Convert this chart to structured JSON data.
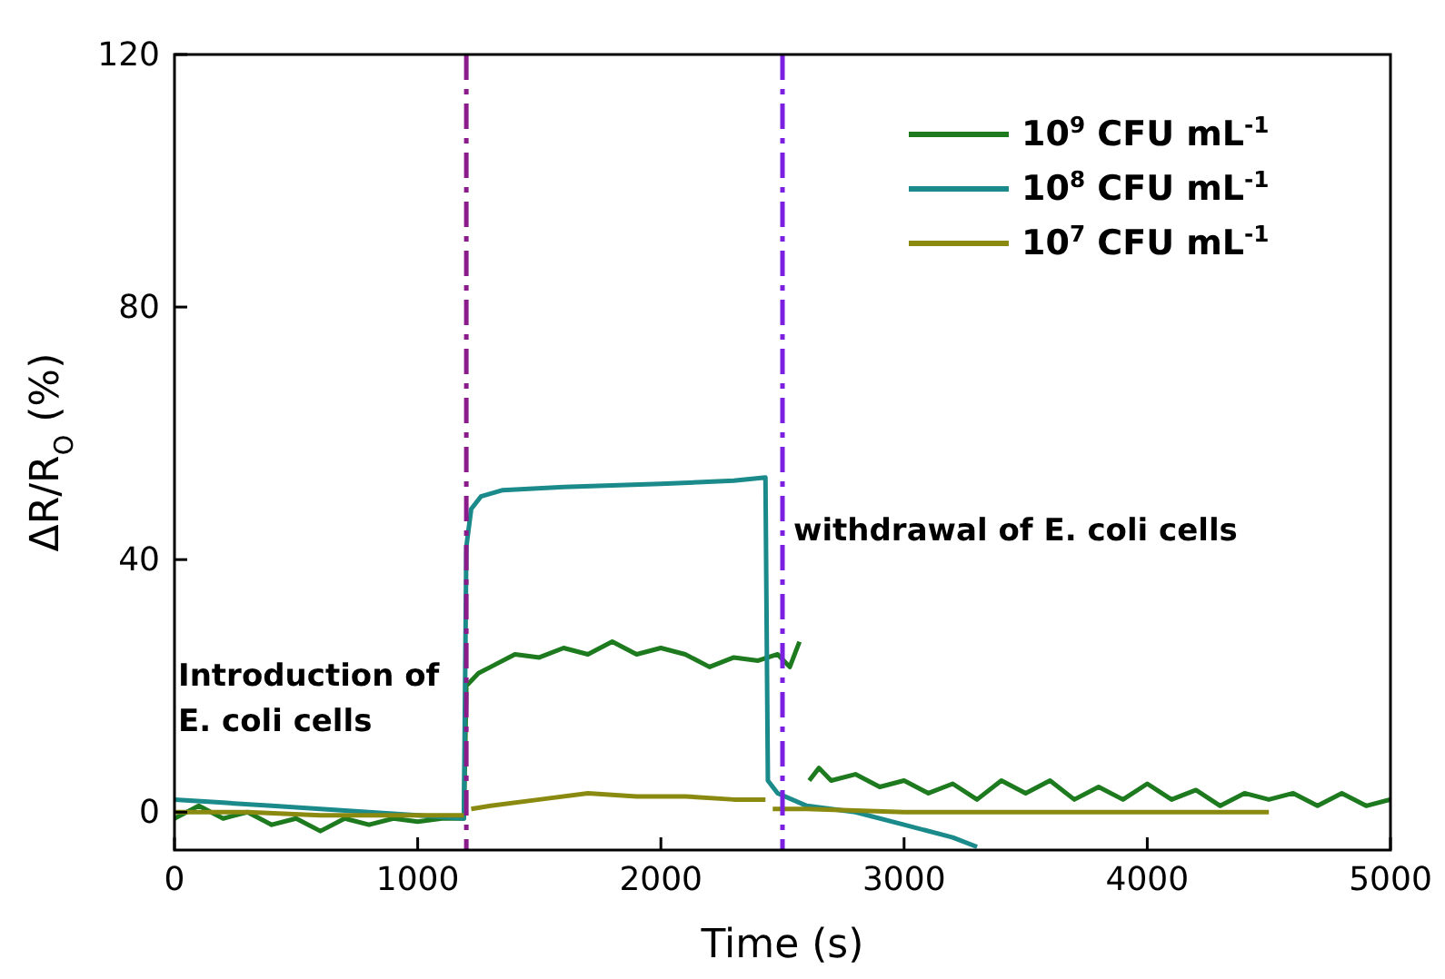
{
  "chart_data": {
    "type": "line",
    "xlabel": "Time (s)",
    "ylabel": "ΔR/R$_{O}$ (%)",
    "xlim": [
      0,
      5000
    ],
    "xticks": [
      0,
      1000,
      2000,
      3000,
      4000,
      5000
    ],
    "ylim": [
      -6,
      120
    ],
    "yticks": [
      0,
      40,
      80,
      120
    ],
    "legend": "top right",
    "grid": false,
    "marker": "none",
    "line_style": "solid",
    "ref_lines": [
      {
        "axis": "x",
        "value": 1200,
        "label": "Introduction of E. coli cells",
        "color": "#8b1a8b",
        "line_style": "dashed"
      },
      {
        "axis": "x",
        "value": 2500,
        "label": "withdrawal of E. coli cells",
        "color": "#7b1fe0",
        "line_style": "dashed"
      }
    ],
    "series": [
      {
        "name": "10$^{9}$ CFU mL$^{-1}$",
        "color": "#1e7a1e",
        "x": [
          0,
          100,
          200,
          300,
          400,
          500,
          600,
          700,
          800,
          900,
          1000,
          1100,
          1190,
          1200,
          1250,
          1300,
          1400,
          1500,
          1600,
          1700,
          1800,
          1900,
          2000,
          2100,
          2200,
          2300,
          2400,
          2480,
          2530,
          2570,
          2580,
          2600,
          2610,
          2650,
          2700,
          2800,
          2900,
          3000,
          3100,
          3200,
          3300,
          3400,
          3500,
          3600,
          3700,
          3800,
          3900,
          4000,
          4100,
          4200,
          4300,
          4400,
          4500,
          4600,
          4700,
          4800,
          4900,
          5000
        ],
        "values": [
          -1,
          1,
          -1,
          0,
          -2,
          -1,
          -3,
          -1,
          -2,
          -1,
          -1.5,
          -1,
          -1,
          20,
          22,
          23,
          25,
          24.5,
          26,
          25,
          27,
          25,
          26,
          25,
          23,
          24.5,
          24,
          25,
          23,
          27,
          null,
          null,
          5,
          7,
          5,
          6,
          4,
          5,
          3,
          4.5,
          2,
          5,
          3,
          5,
          2,
          4,
          2,
          4.5,
          2,
          3.5,
          1,
          3,
          2,
          3,
          1,
          3,
          1,
          2
        ]
      },
      {
        "name": "10$^{8}$ CFU mL$^{-1}$",
        "color": "#1a8a8a",
        "x": [
          0,
          200,
          400,
          600,
          800,
          1000,
          1190,
          1200,
          1220,
          1260,
          1350,
          1600,
          2000,
          2300,
          2430,
          2440,
          2480,
          2600,
          2800,
          3000,
          3200,
          3300
        ],
        "values": [
          2,
          1.5,
          1,
          0.5,
          0,
          -0.5,
          -1,
          42,
          48,
          50,
          51,
          51.5,
          52,
          52.5,
          53,
          5,
          3,
          1,
          0,
          -2,
          -4,
          -5.5
        ]
      },
      {
        "name": "10$^{7}$ CFU mL$^{-1}$",
        "color": "#8a8a10",
        "x": [
          0,
          300,
          600,
          900,
          1190,
          1200,
          1210,
          1220,
          1300,
          1500,
          1700,
          1900,
          2100,
          2300,
          2430,
          2440,
          2450,
          2460,
          2500,
          2600,
          3000,
          3500,
          4000,
          4500
        ],
        "values": [
          0,
          0,
          -0.5,
          -0.5,
          -0.5,
          null,
          null,
          0.5,
          1,
          2,
          3,
          2.5,
          2.5,
          2,
          2,
          null,
          null,
          0.5,
          0.5,
          0.5,
          0,
          0,
          0,
          0
        ]
      }
    ]
  }
}
